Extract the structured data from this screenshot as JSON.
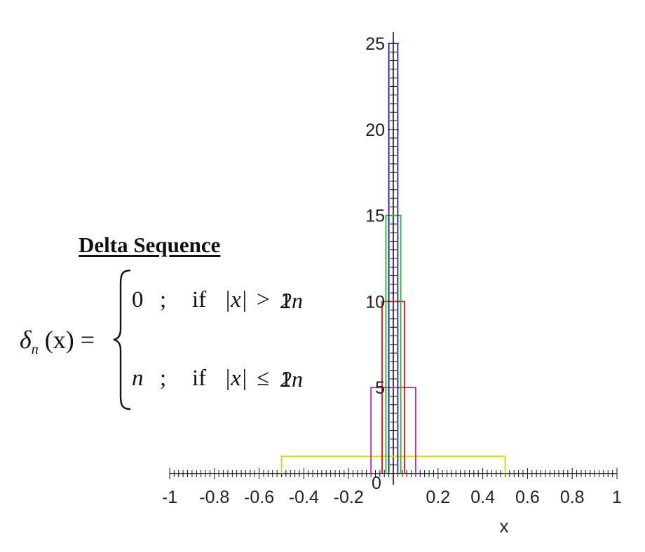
{
  "formula": {
    "title": "Delta Sequence",
    "lhs_symbol": "δ",
    "lhs_subscript": "n",
    "lhs_arg": "(x) =",
    "cases": [
      {
        "value": "0",
        "separator": ";",
        "condition_word": "if",
        "abs_expr": "|x|",
        "relation": ">",
        "numerator": "1",
        "denominator": "2n"
      },
      {
        "value": "n",
        "separator": ";",
        "condition_word": "if",
        "abs_expr": "|x|",
        "relation": "≤",
        "numerator": "1",
        "denominator": "2n"
      }
    ]
  },
  "chart_data": {
    "type": "line",
    "title": "",
    "xlabel": "x",
    "ylabel": "",
    "xlim": [
      -1,
      1
    ],
    "ylim": [
      0,
      25
    ],
    "x_ticks": [
      -1,
      -0.8,
      -0.6,
      -0.4,
      -0.2,
      0,
      0.2,
      0.4,
      0.6,
      0.8,
      1
    ],
    "x_tick_labels": [
      "-1",
      "-0.8",
      "-0.6",
      "-0.4",
      "-0.2",
      "0",
      "0.2",
      "0.4",
      "0.6",
      "0.8",
      "1"
    ],
    "y_ticks": [
      5,
      10,
      15,
      20,
      25
    ],
    "y_tick_labels": [
      "5",
      "10",
      "15",
      "20",
      "25"
    ],
    "grid": false,
    "legend": "none",
    "series": [
      {
        "n": 1,
        "color": "#e0d000",
        "x": [
          -0.5,
          -0.5,
          0.5,
          0.5
        ],
        "y": [
          0,
          1,
          1,
          0
        ]
      },
      {
        "n": 5,
        "color": "#cc22cc",
        "x": [
          -0.1,
          -0.1,
          0.1,
          0.1
        ],
        "y": [
          0,
          5,
          5,
          0
        ]
      },
      {
        "n": 10,
        "color": "#dd1111",
        "x": [
          -0.05,
          -0.05,
          0.05,
          0.05
        ],
        "y": [
          0,
          10,
          10,
          0
        ]
      },
      {
        "n": 15,
        "color": "#22bb22",
        "x": [
          -0.0333,
          -0.0333,
          0.0333,
          0.0333
        ],
        "y": [
          0,
          15,
          15,
          0
        ]
      },
      {
        "n": 25,
        "color": "#1a1aa0",
        "x": [
          -0.02,
          -0.02,
          0.02,
          0.02
        ],
        "y": [
          0,
          25,
          25,
          0
        ]
      }
    ]
  }
}
